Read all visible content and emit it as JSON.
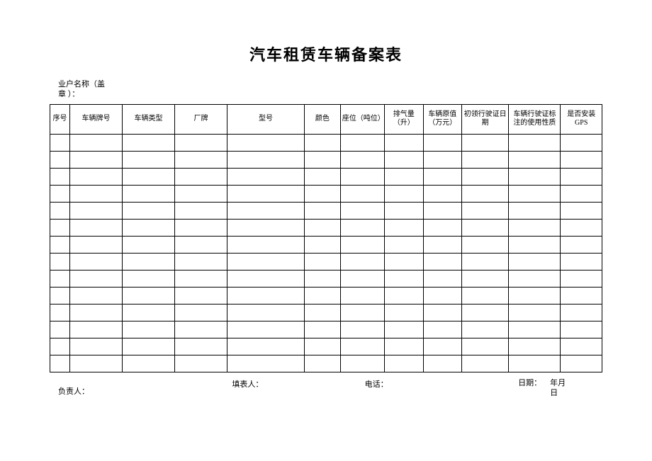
{
  "title": "汽车租赁车辆备案表",
  "subtitle_line1": "业户名称（盖",
  "subtitle_line2": "章 ）：",
  "columns": [
    {
      "label": "序号",
      "width": "3.6%"
    },
    {
      "label": "车辆牌号",
      "width": "9.5%"
    },
    {
      "label": "车辆类型",
      "width": "9.5%"
    },
    {
      "label": "厂牌",
      "width": "9.5%"
    },
    {
      "label": "型号",
      "width": "14%"
    },
    {
      "label": "颜色",
      "width": "6.5%"
    },
    {
      "label": "座位（吨位）",
      "width": "8%"
    },
    {
      "label": "排气量（升）",
      "width": "7%"
    },
    {
      "label": "车辆原值（万元）",
      "width": "7%"
    },
    {
      "label": "初领行驶证日期",
      "width": "8.5%"
    },
    {
      "label": "车辆行驶证标注的使用性质",
      "width": "9.4%"
    },
    {
      "label": "是否安装GPS",
      "width": "7.5%"
    }
  ],
  "empty_rows": 14,
  "footer": {
    "responsible": "负责人：",
    "preparer": "填表人：",
    "phone": "电话：",
    "date_label": "日期：",
    "date_value1": "年月",
    "date_value2": "日"
  }
}
